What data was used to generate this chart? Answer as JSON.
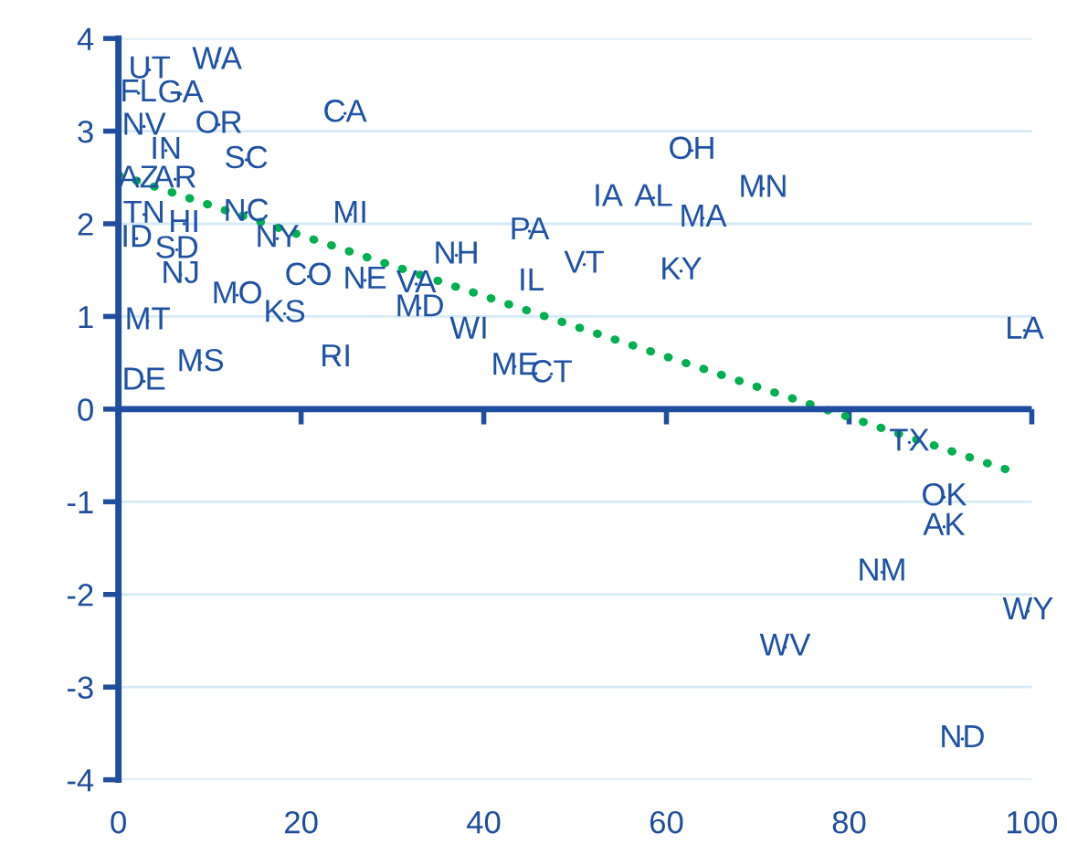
{
  "chart_data": {
    "type": "scatter",
    "xlim": [
      0,
      100
    ],
    "ylim": [
      -4,
      4
    ],
    "xticks": [
      0,
      20,
      40,
      60,
      80,
      100
    ],
    "yticks": [
      -4,
      -3,
      -2,
      -1,
      0,
      1,
      2,
      3,
      4
    ],
    "grid": "y",
    "ref_lines": [
      {
        "axis": "y",
        "value": 0,
        "color": "#1f4e9e"
      }
    ],
    "series": [
      {
        "marker": "circle",
        "color": "#1f52a5",
        "x": [
          3.4,
          10.8,
          2.2,
          6.8,
          2.8,
          11,
          24.8,
          5.2,
          14,
          2.2,
          6.2,
          2.8,
          7.2,
          14,
          2.0,
          6.4,
          17.4,
          25.4,
          6.8,
          13,
          20.8,
          18.2,
          27,
          32.6,
          33,
          37,
          38.4,
          23.8,
          43.4,
          47.4,
          45,
          45.2,
          51,
          53.6,
          58.6,
          62.8,
          64,
          70.6,
          61.6,
          99.2,
          86.6,
          90.4,
          90.4,
          83.6,
          99.6,
          73,
          92.4,
          3.2,
          9,
          2.8
        ],
        "values": [
          3.66,
          3.76,
          3.41,
          3.4,
          3.05,
          3.07,
          3.19,
          2.79,
          2.69,
          2.48,
          2.48,
          2.1,
          2.0,
          2.12,
          1.84,
          1.72,
          1.84,
          2.1,
          1.45,
          1.23,
          1.43,
          1.03,
          1.39,
          1.35,
          1.09,
          1.66,
          0.85,
          0.55,
          0.46,
          0.38,
          1.92,
          1.37,
          1.56,
          2.28,
          2.28,
          2.79,
          2.06,
          2.38,
          1.49,
          0.85,
          -0.36,
          -0.95,
          -1.27,
          -1.76,
          -2.18,
          -2.57,
          -3.56,
          0.95,
          0.5,
          0.3
        ],
        "value_labels": [
          "UT",
          "WA",
          "FL",
          "GA",
          "NV",
          "OR",
          "CA",
          "IN",
          "SC",
          "AZ",
          "AR",
          "TN",
          "HI",
          "NC",
          "ID",
          "SD",
          "NY",
          "MI",
          "NJ",
          "MO",
          "CO",
          "KS",
          "NE",
          "VA",
          "MD",
          "NH",
          "WI",
          "RI",
          "ME",
          "CT",
          "PA",
          "IL",
          "VT",
          "IA",
          "AL",
          "OH",
          "MA",
          "MN",
          "KY",
          "LA",
          "TX",
          "OK",
          "AK",
          "NM",
          "WY",
          "WV",
          "ND",
          "MT",
          "MS",
          "DE"
        ]
      },
      {
        "type": "line",
        "color": "#00b050",
        "line_style": "dotted",
        "marker": "none",
        "x": [
          0,
          98.4
        ],
        "values": [
          2.53,
          -0.69
        ]
      }
    ]
  }
}
